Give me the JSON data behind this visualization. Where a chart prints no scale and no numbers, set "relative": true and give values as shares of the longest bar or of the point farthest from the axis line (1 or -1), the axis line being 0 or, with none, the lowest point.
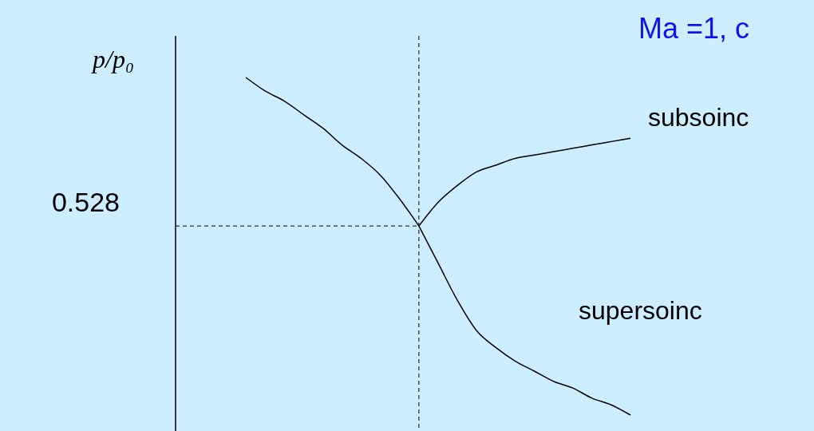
{
  "chart_data": {
    "type": "line",
    "relative": true,
    "title": "Ma =1, c",
    "ylabel": "p/p₀",
    "categories": [
      null,
      null,
      null,
      null,
      null,
      null,
      null,
      null,
      null,
      null,
      null,
      null,
      null,
      null,
      null,
      null,
      null,
      null,
      null,
      null,
      null
    ],
    "series": [
      {
        "color": "#000000",
        "values": [
          1,
          0.96,
          0.93,
          0.89,
          0.85,
          0.8,
          0.76,
          0.71,
          0.64,
          0.56,
          null,
          null,
          null,
          null,
          null,
          null,
          null,
          null,
          null,
          null,
          null
        ]
      },
      {
        "name": "subsoinc",
        "color": "#000000",
        "values": [
          null,
          null,
          null,
          null,
          null,
          null,
          null,
          null,
          null,
          0.56,
          0.63,
          0.68,
          0.72,
          0.74,
          0.76,
          0.77,
          0.78,
          0.79,
          0.8,
          0.81,
          0.82
        ]
      },
      {
        "name": "supersoinc",
        "color": "#000000",
        "values": [
          null,
          null,
          null,
          null,
          null,
          null,
          null,
          null,
          null,
          0.56,
          0.45,
          0.34,
          0.25,
          0.2,
          0.16,
          0.13,
          0.1,
          0.08,
          0.05,
          0.03,
          0
        ]
      }
    ],
    "ref_lines": [
      {
        "axis": "y",
        "value": 0.56,
        "line_style": "dashed"
      }
    ],
    "annotations": [
      "0.528"
    ],
    "grid": false,
    "marker": "none",
    "line_style": "solid"
  }
}
